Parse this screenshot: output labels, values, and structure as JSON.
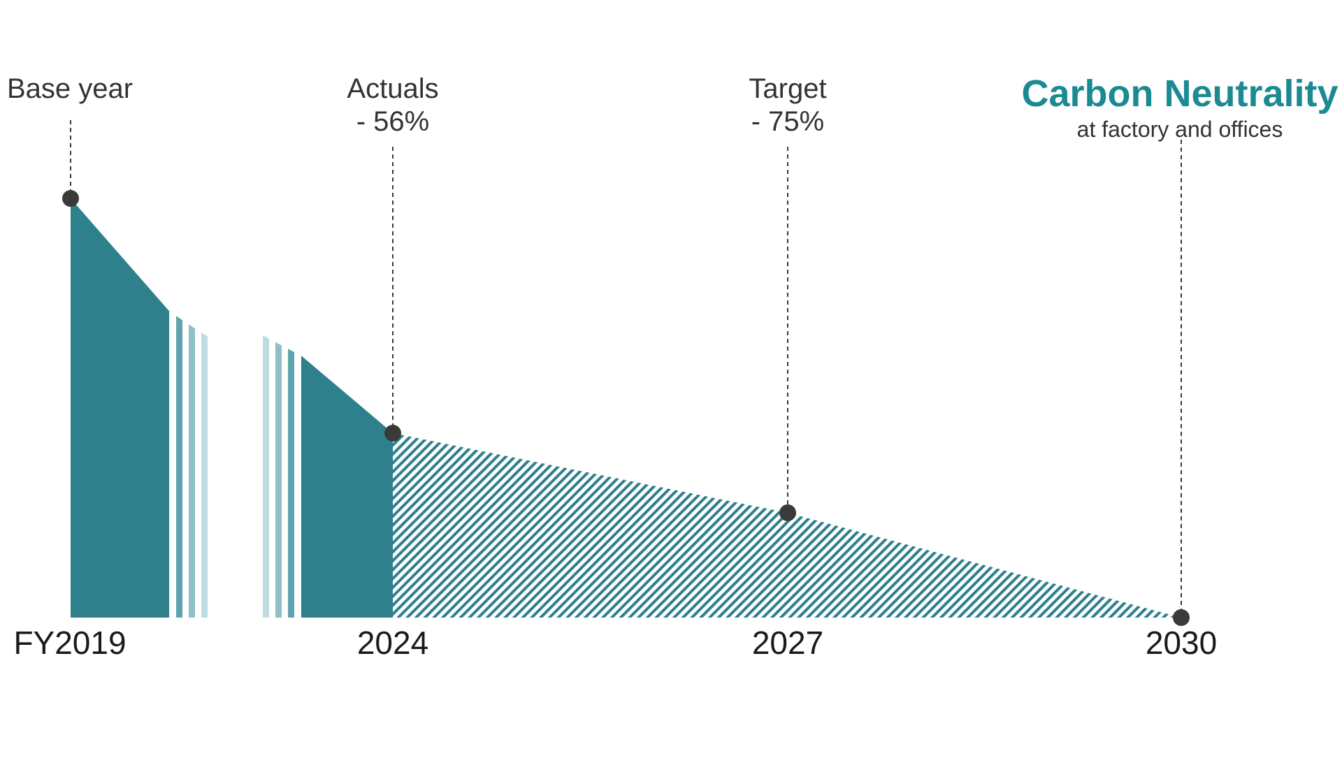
{
  "chart_data": {
    "type": "area",
    "title": "Carbon Neutrality",
    "subtitle": "at factory and offices",
    "x_ticks": [
      "FY2019",
      "2024",
      "2027",
      "2030"
    ],
    "xlabel": "",
    "ylabel": "",
    "y_unit": "% of base year emissions",
    "ylim": [
      0,
      100
    ],
    "grid": false,
    "axis_break": {
      "between": [
        "FY2019",
        "2024"
      ]
    },
    "series": [
      {
        "style": "solid",
        "points": [
          {
            "x": "FY2019",
            "y": 100
          },
          {
            "x": "2024",
            "y": 44
          }
        ]
      },
      {
        "style": "hatched",
        "points": [
          {
            "x": "2024",
            "y": 44
          },
          {
            "x": "2027",
            "y": 25
          },
          {
            "x": "2030",
            "y": 0
          }
        ]
      }
    ],
    "annotations": [
      {
        "x": "FY2019",
        "y": 100,
        "label": "Base year",
        "sublabel": ""
      },
      {
        "x": "2024",
        "y": 44,
        "label": "Actuals",
        "sublabel": "- 56%"
      },
      {
        "x": "2027",
        "y": 25,
        "label": "Target",
        "sublabel": "- 75%"
      },
      {
        "x": "2030",
        "y": 0,
        "label": "",
        "sublabel": ""
      }
    ],
    "colors": {
      "fill": "#2e808d",
      "hatch": "#2e808d",
      "fade_1": "#5fa3ae",
      "fade_2": "#8fc0c8",
      "fade_3": "#bfdce0",
      "title": "#1b8a93",
      "marker": "#3a3a3a",
      "text": "#333333"
    }
  }
}
